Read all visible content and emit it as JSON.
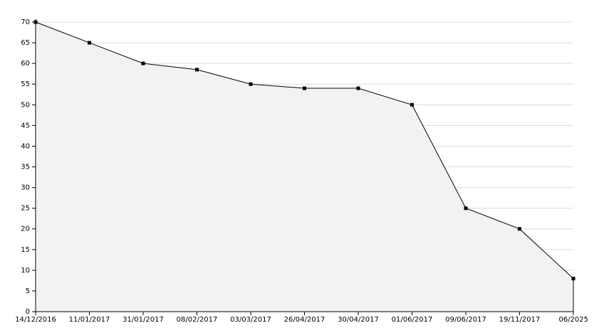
{
  "chart_data": {
    "type": "area",
    "categories": [
      "14/12/2016",
      "11/01/2017",
      "31/01/2017",
      "08/02/2017",
      "03/03/2017",
      "26/04/2017",
      "30/04/2017",
      "01/06/2017",
      "09/06/2017",
      "19/11/2017",
      "06/2025"
    ],
    "values": [
      70,
      65,
      60,
      58.5,
      55,
      54,
      54,
      50,
      25,
      20,
      8
    ],
    "color": "#000000",
    "fill": "#f2f2f2",
    "ylim": [
      0,
      70
    ],
    "yticks": [
      0,
      5,
      10,
      15,
      20,
      25,
      30,
      35,
      40,
      45,
      50,
      55,
      60,
      65,
      70
    ],
    "grid": true
  }
}
